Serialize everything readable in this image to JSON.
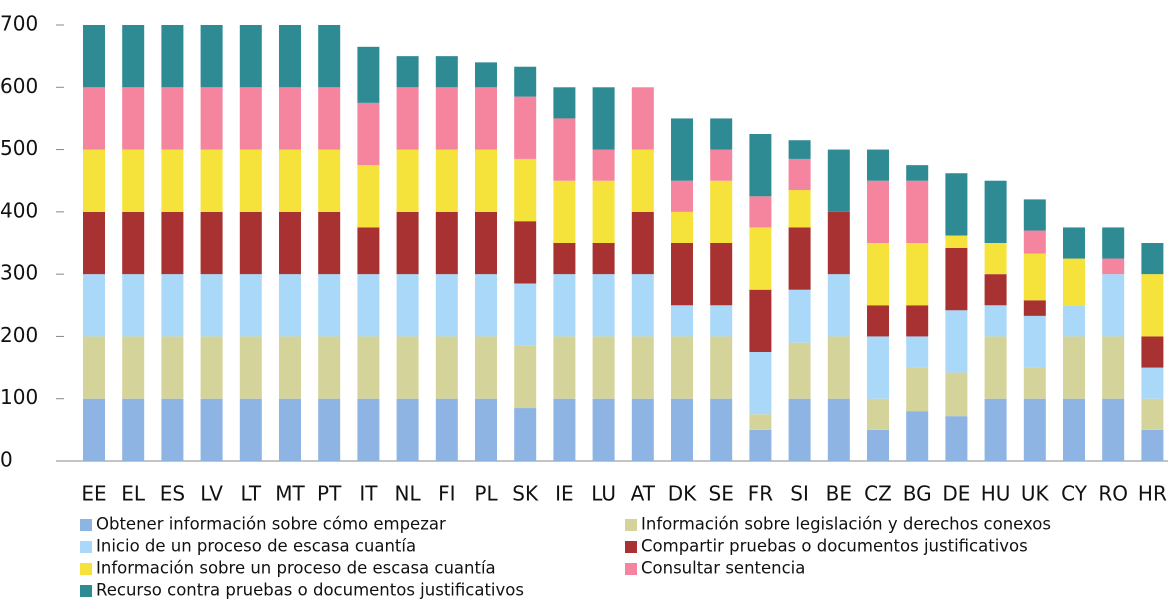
{
  "chart_data": {
    "type": "stacked-bar",
    "categories": [
      "EE",
      "EL",
      "ES",
      "LV",
      "LT",
      "MT",
      "PT",
      "IT",
      "NL",
      "FI",
      "PL",
      "SK",
      "IE",
      "LU",
      "AT",
      "DK",
      "SE",
      "FR",
      "SI",
      "BE",
      "CZ",
      "BG",
      "DE",
      "HU",
      "UK",
      "CY",
      "RO",
      "HR"
    ],
    "series": [
      {
        "name": "Obtener información sobre cómo empezar",
        "color": "#8db4e2",
        "values": [
          100,
          100,
          100,
          100,
          100,
          100,
          100,
          100,
          100,
          100,
          100,
          85,
          100,
          100,
          100,
          100,
          100,
          50,
          100,
          100,
          50,
          80,
          72,
          100,
          100,
          100,
          100,
          50
        ]
      },
      {
        "name": "Información sobre legislación y derechos conexos",
        "color": "#d4d49a",
        "values": [
          100,
          100,
          100,
          100,
          100,
          100,
          100,
          100,
          100,
          100,
          100,
          100,
          100,
          100,
          100,
          100,
          100,
          25,
          90,
          100,
          50,
          70,
          70,
          100,
          50,
          100,
          100,
          50
        ]
      },
      {
        "name": "Inicio de un proceso de escasa cuantía",
        "color": "#a9d8f8",
        "values": [
          100,
          100,
          100,
          100,
          100,
          100,
          100,
          100,
          100,
          100,
          100,
          100,
          100,
          100,
          100,
          50,
          50,
          100,
          85,
          100,
          100,
          50,
          100,
          50,
          83,
          50,
          100,
          50
        ]
      },
      {
        "name": "Compartir pruebas o documentos justificativos",
        "color": "#a83232",
        "values": [
          100,
          100,
          100,
          100,
          100,
          100,
          100,
          75,
          100,
          100,
          100,
          100,
          50,
          50,
          100,
          100,
          100,
          100,
          100,
          100,
          50,
          50,
          100,
          50,
          25,
          0,
          0,
          50
        ]
      },
      {
        "name": "Información sobre un proceso de escasa cuantía",
        "color": "#f5e23b",
        "values": [
          100,
          100,
          100,
          100,
          100,
          100,
          100,
          100,
          100,
          100,
          100,
          100,
          100,
          100,
          100,
          50,
          100,
          100,
          60,
          0,
          100,
          100,
          20,
          50,
          75,
          75,
          0,
          100
        ]
      },
      {
        "name": "Consultar sentencia",
        "color": "#f5849e",
        "values": [
          100,
          100,
          100,
          100,
          100,
          100,
          100,
          100,
          100,
          100,
          100,
          100,
          100,
          50,
          100,
          50,
          50,
          50,
          50,
          0,
          100,
          100,
          0,
          0,
          37,
          0,
          25,
          0
        ]
      },
      {
        "name": "Recurso contra pruebas o documentos justificativos",
        "color": "#2e8b94",
        "values": [
          100,
          100,
          100,
          100,
          100,
          100,
          100,
          90,
          50,
          50,
          40,
          48,
          50,
          100,
          0,
          100,
          50,
          100,
          30,
          100,
          50,
          25,
          100,
          100,
          50,
          50,
          50,
          50
        ]
      }
    ],
    "ylim": [
      0,
      700
    ],
    "yticks": [
      0,
      100,
      200,
      300,
      400,
      500,
      600,
      700
    ]
  }
}
